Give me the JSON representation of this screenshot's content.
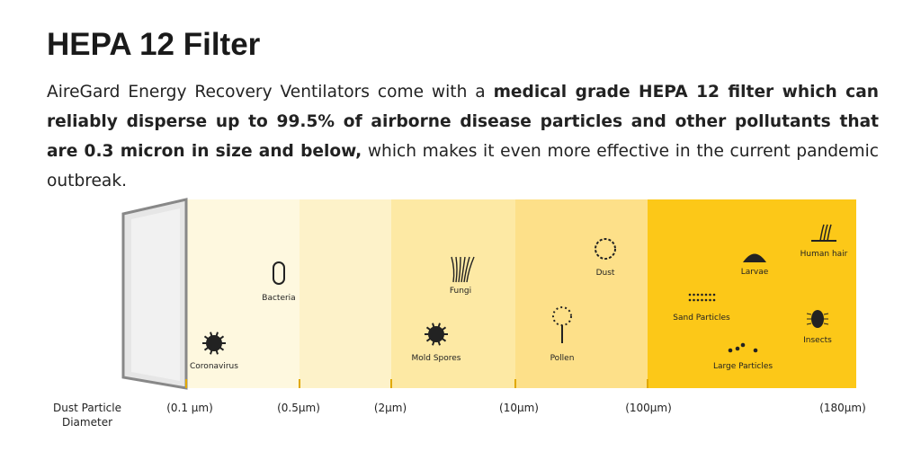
{
  "header": {
    "title": "HEPA 12 Filter",
    "description": {
      "lead": "AireGard Energy Recovery Ventilators come with a ",
      "emphasis": "medical grade HEPA 12 filter which can reliably disperse up to 99.5% of airborne disease particles and other pollutants that are 0.3 micron in size and below,",
      "tail": " which makes it even more effective in the current pandemic outbreak."
    }
  },
  "diagram": {
    "axis_label": [
      "Dust Particle",
      "Diameter"
    ],
    "scale": [
      "(0.1 µm)",
      "(0.5µm)",
      "(2µm)",
      "(10µm)",
      "(100µm)",
      "(180µm)"
    ],
    "particles": [
      "Coronavirus",
      "Bacteria",
      "Mold Spores",
      "Fungi",
      "Dust",
      "Pollen",
      "Larvae",
      "Sand Particles",
      "Large Particles",
      "Human hair",
      "Insects"
    ]
  }
}
